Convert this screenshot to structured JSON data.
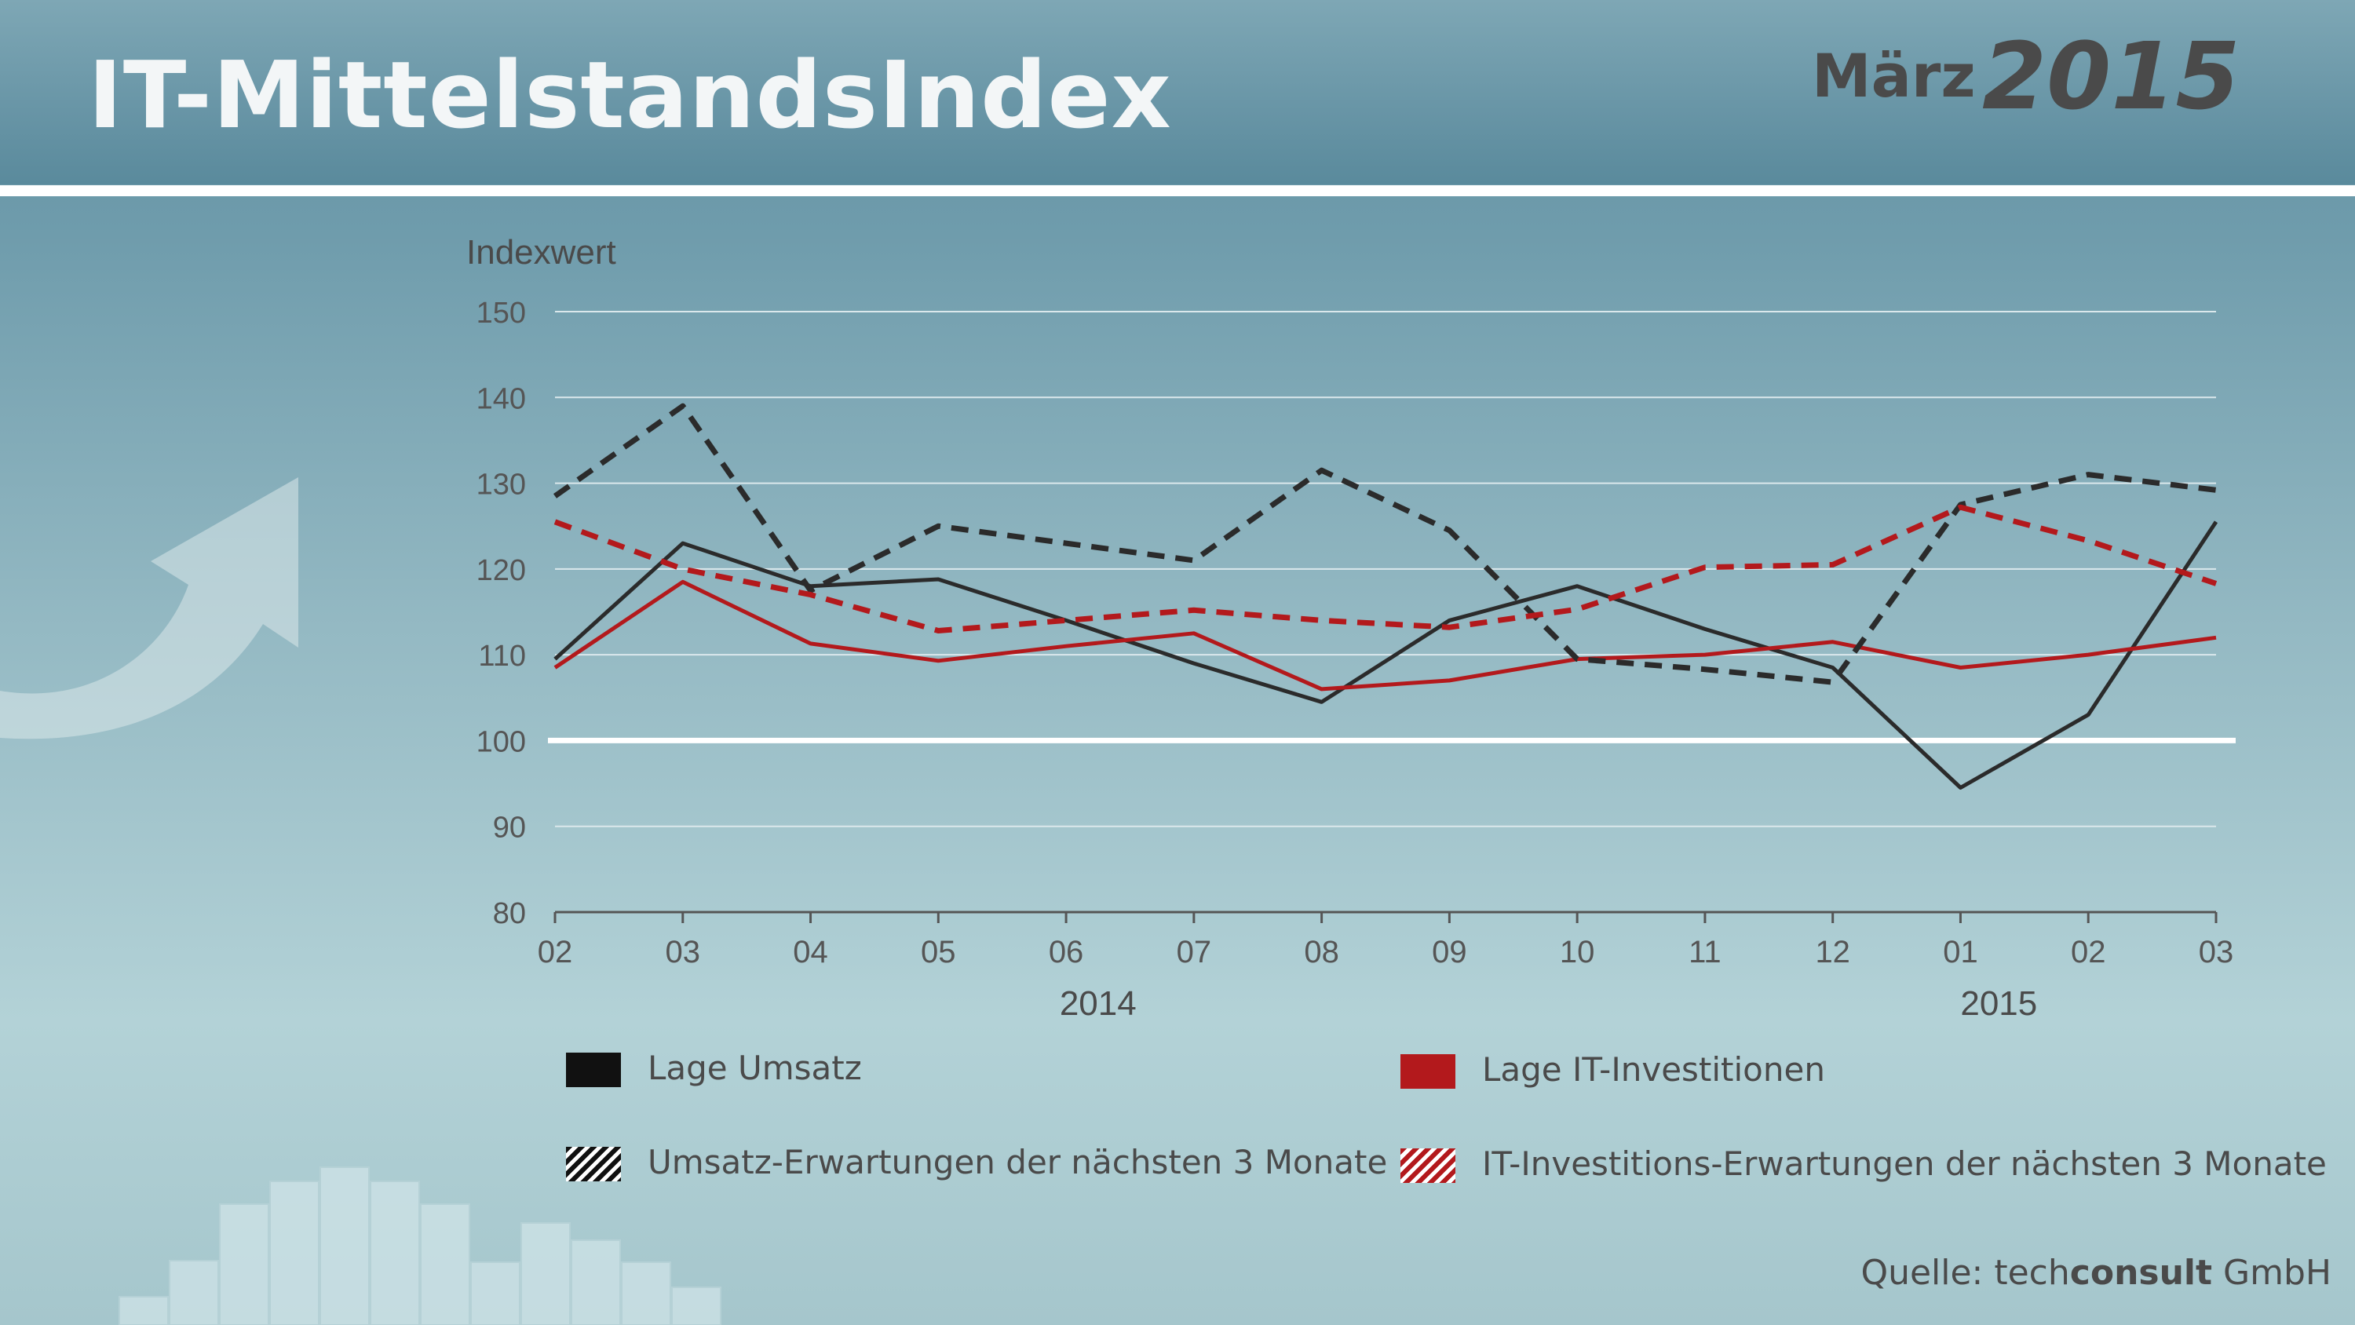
{
  "header": {
    "title": "IT-MittelstandsIndex",
    "month": "März",
    "year": "2015"
  },
  "chart_data": {
    "type": "line",
    "ylabel": "Indexwert",
    "ylim": [
      80,
      150
    ],
    "yticks": [
      80,
      90,
      100,
      110,
      120,
      130,
      140,
      150
    ],
    "categories": [
      "02",
      "03",
      "04",
      "05",
      "06",
      "07",
      "08",
      "09",
      "10",
      "11",
      "12",
      "01",
      "02",
      "03"
    ],
    "year_labels": [
      {
        "label": "2014",
        "category_index": 4.25
      },
      {
        "label": "2015",
        "category_index": 11.3
      }
    ],
    "reference_line": 100,
    "grid": true,
    "series": [
      {
        "name": "Lage Umsatz",
        "color": "#2b2b2b",
        "style": "solid",
        "values": [
          109.5,
          123,
          118,
          118.8,
          114,
          109,
          104.5,
          114,
          118,
          113,
          108.5,
          94.5,
          103,
          125.5
        ]
      },
      {
        "name": "Lage IT-Investitionen",
        "color": "#b3191c",
        "style": "solid",
        "values": [
          108.5,
          118.5,
          111.3,
          109.3,
          111,
          112.5,
          106,
          107,
          109.5,
          110,
          111.5,
          108.5,
          110,
          112
        ]
      },
      {
        "name": "Umsatz-Erwartungen der nächsten 3 Monate",
        "color": "#2b2b2b",
        "style": "dashed",
        "values": [
          128.5,
          139,
          117.5,
          125,
          123,
          121,
          131.5,
          124.5,
          109.5,
          108.3,
          106.8,
          127.5,
          131,
          129.2
        ]
      },
      {
        "name": "IT-Investitions-Erwartungen der nächsten 3 Monate",
        "color": "#b3191c",
        "style": "dashed",
        "values": [
          125.5,
          120,
          117,
          112.8,
          114,
          115.2,
          114,
          113.2,
          115.3,
          120.2,
          120.5,
          127.2,
          123.3,
          118.3
        ]
      }
    ]
  },
  "legend": {
    "items": [
      {
        "label": "Lage Umsatz",
        "color": "#111111",
        "pattern": "solid"
      },
      {
        "label": "Lage IT-Investitionen",
        "color": "#b3191c",
        "pattern": "solid"
      },
      {
        "label": "Umsatz-Erwartungen der nächsten 3 Monate",
        "color": "#111111",
        "pattern": "hatched"
      },
      {
        "label": "IT-Investitions-Erwartungen der nächsten 3 Monate",
        "color": "#b3191c",
        "pattern": "hatched"
      }
    ]
  },
  "source": {
    "prefix": "Quelle: tech",
    "brand": "consult",
    "suffix": " GmbH"
  }
}
